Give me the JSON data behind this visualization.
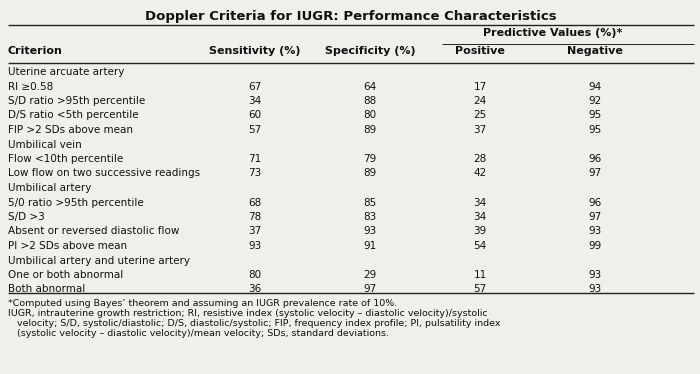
{
  "title": "Doppler Criteria for IUGR: Performance Characteristics",
  "predictive_label": "Predictive Values (%)*",
  "col_headers": [
    "Criterion",
    "Sensitivity (%)",
    "Specificity (%)",
    "Positive",
    "Negative"
  ],
  "rows": [
    {
      "criterion": "Uterine arcuate artery",
      "section_header": true,
      "sensitivity": "",
      "specificity": "",
      "positive": "",
      "negative": ""
    },
    {
      "criterion": "RI ≥0.58",
      "section_header": false,
      "sensitivity": "67",
      "specificity": "64",
      "positive": "17",
      "negative": "94"
    },
    {
      "criterion": "S/D ratio >95th percentile",
      "section_header": false,
      "sensitivity": "34",
      "specificity": "88",
      "positive": "24",
      "negative": "92"
    },
    {
      "criterion": "D/S ratio <5th percentile",
      "section_header": false,
      "sensitivity": "60",
      "specificity": "80",
      "positive": "25",
      "negative": "95"
    },
    {
      "criterion": "FIP >2 SDs above mean",
      "section_header": false,
      "sensitivity": "57",
      "specificity": "89",
      "positive": "37",
      "negative": "95"
    },
    {
      "criterion": "Umbilical vein",
      "section_header": true,
      "sensitivity": "",
      "specificity": "",
      "positive": "",
      "negative": ""
    },
    {
      "criterion": "Flow <10th percentile",
      "section_header": false,
      "sensitivity": "71",
      "specificity": "79",
      "positive": "28",
      "negative": "96"
    },
    {
      "criterion": "Low flow on two successive readings",
      "section_header": false,
      "sensitivity": "73",
      "specificity": "89",
      "positive": "42",
      "negative": "97"
    },
    {
      "criterion": "Umbilical artery",
      "section_header": true,
      "sensitivity": "",
      "specificity": "",
      "positive": "",
      "negative": ""
    },
    {
      "criterion": "5/0 ratio >95th percentile",
      "section_header": false,
      "sensitivity": "68",
      "specificity": "85",
      "positive": "34",
      "negative": "96"
    },
    {
      "criterion": "S/D >3",
      "section_header": false,
      "sensitivity": "78",
      "specificity": "83",
      "positive": "34",
      "negative": "97"
    },
    {
      "criterion": "Absent or reversed diastolic flow",
      "section_header": false,
      "sensitivity": "37",
      "specificity": "93",
      "positive": "39",
      "negative": "93"
    },
    {
      "criterion": "PI >2 SDs above mean",
      "section_header": false,
      "sensitivity": "93",
      "specificity": "91",
      "positive": "54",
      "negative": "99"
    },
    {
      "criterion": "Umbilical artery and uterine artery",
      "section_header": true,
      "sensitivity": "",
      "specificity": "",
      "positive": "",
      "negative": ""
    },
    {
      "criterion": "One or both abnormal",
      "section_header": false,
      "sensitivity": "80",
      "specificity": "29",
      "positive": "11",
      "negative": "93"
    },
    {
      "criterion": "Both abnormal",
      "section_header": false,
      "sensitivity": "36",
      "specificity": "97",
      "positive": "57",
      "negative": "93"
    }
  ],
  "footnote_lines": [
    "*Computed using Bayes’ theorem and assuming an IUGR prevalence rate of 10%.",
    "IUGR, intrauterine growth restriction; RI, resistive index (systolic velocity – diastolic velocity)/systolic",
    "   velocity; S/D, systolic/diastolic; D/S, diastolic/systolic; FIP, frequency index profile; PI, pulsatility index",
    "   (systolic velocity – diastolic velocity)/mean velocity; SDs, standard deviations."
  ],
  "bg_color": "#f0efeb",
  "line_color": "#222222",
  "text_color": "#111111",
  "font_size_title": 9.5,
  "font_size_header": 8.0,
  "font_size_body": 7.5,
  "font_size_footnote": 6.8,
  "fig_width": 7.0,
  "fig_height": 3.74,
  "dpi": 100
}
